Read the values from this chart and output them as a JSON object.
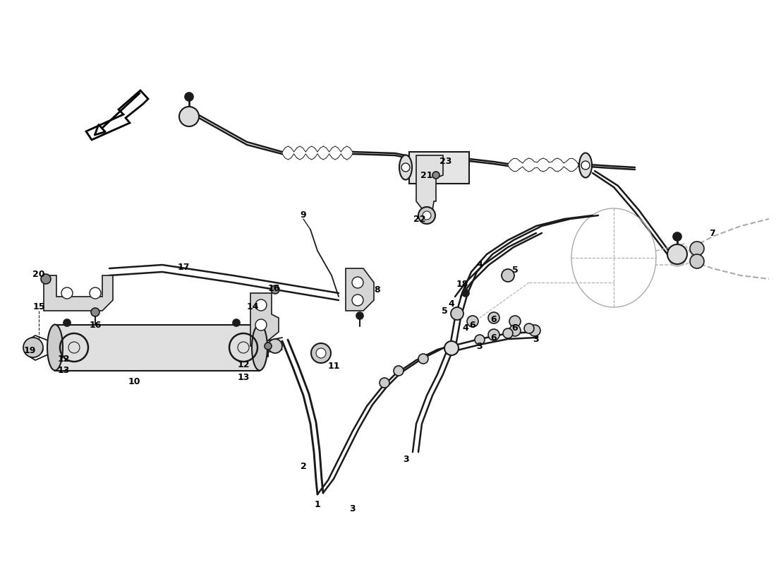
{
  "bg_color": "#ffffff",
  "line_color": "#1a1a1a",
  "ghost_color": "#aaaaaa",
  "lw_main": 1.2,
  "lw_thick": 1.8,
  "lw_thin": 0.8,
  "label_fontsize": 9,
  "label_fontsize_sm": 8
}
